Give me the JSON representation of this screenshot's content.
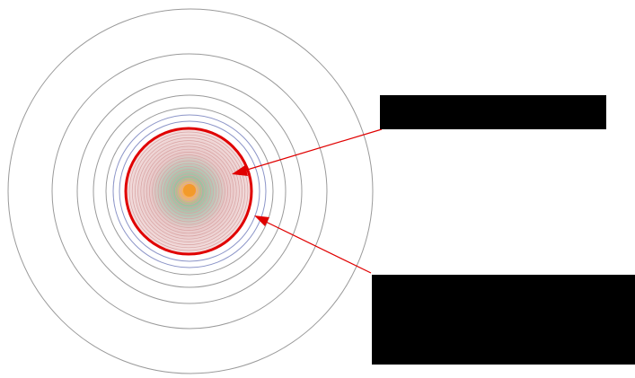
{
  "colors": {
    "background": "#ffffff",
    "outer_rings": "#9a9a9a",
    "inner_rings_blue": "#8c95c8",
    "core_rings_pink": "#d9a3a3",
    "core_fill": "#f3dede",
    "center_green": "#8fb89a",
    "center_orange": "#f39a2a",
    "highlight_circle": "#e00000",
    "arrows": "#e00000",
    "redaction": "#000000"
  },
  "annotations": {
    "top_label": "",
    "bottom_label": ""
  }
}
